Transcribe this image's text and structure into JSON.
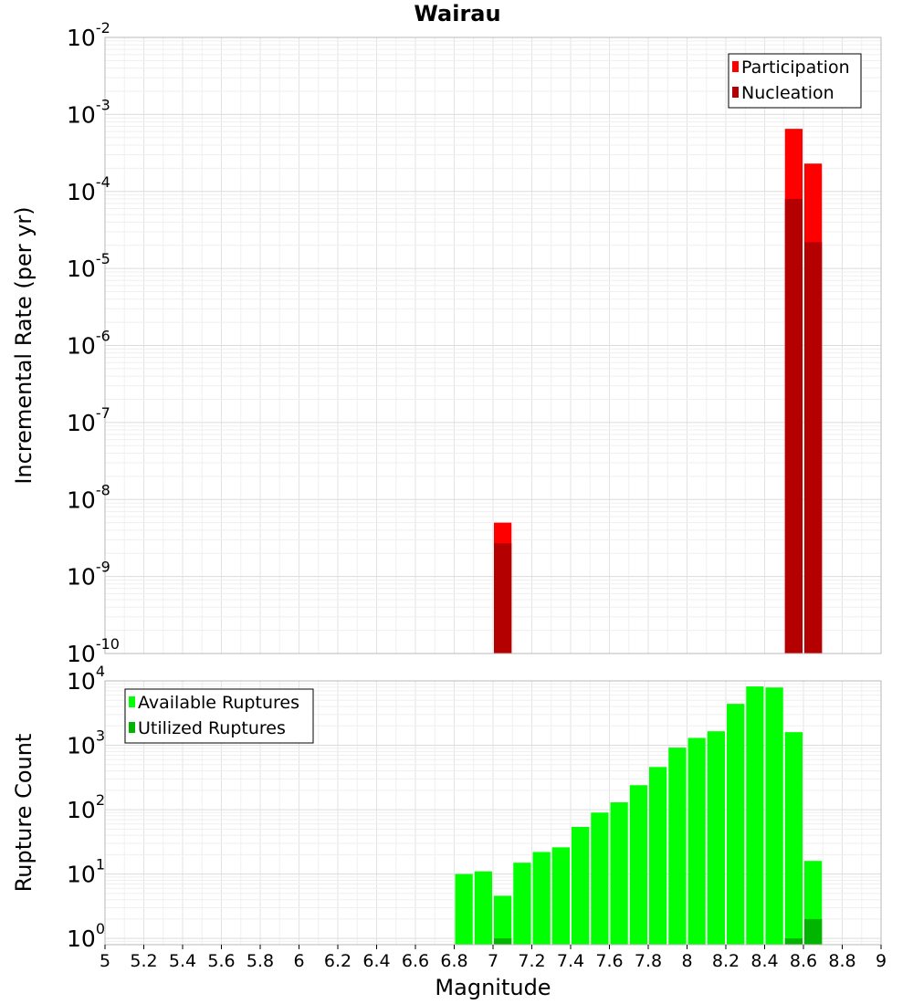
{
  "chart_data": [
    {
      "id": "rates",
      "type": "bar",
      "title": "Wairau",
      "xlabel": "",
      "ylabel": "Incremental Rate (per yr)",
      "yscale": "log",
      "ylim": [
        1e-10,
        0.01
      ],
      "xlim": [
        5,
        9
      ],
      "bar_width": 0.1,
      "grid": true,
      "legend_position": "top-right",
      "y_tick_labels": [
        {
          "base": "10",
          "exp": "-10",
          "value": 1e-10
        },
        {
          "base": "10",
          "exp": "-9",
          "value": 1e-09
        },
        {
          "base": "10",
          "exp": "-8",
          "value": 1e-08
        },
        {
          "base": "10",
          "exp": "-7",
          "value": 1e-07
        },
        {
          "base": "10",
          "exp": "-6",
          "value": 1e-06
        },
        {
          "base": "10",
          "exp": "-5",
          "value": 1e-05
        },
        {
          "base": "10",
          "exp": "-4",
          "value": 0.0001
        },
        {
          "base": "10",
          "exp": "-3",
          "value": 0.001
        },
        {
          "base": "10",
          "exp": "-2",
          "value": 0.01
        }
      ],
      "series": [
        {
          "name": "Participation",
          "color": "#ff0000",
          "x": [
            7.05,
            8.55,
            8.65
          ],
          "values": [
            5e-09,
            0.00065,
            0.00023
          ]
        },
        {
          "name": "Nucleation",
          "color": "#b40000",
          "x": [
            7.05,
            8.55,
            8.65
          ],
          "values": [
            2.7e-09,
            8e-05,
            2.2e-05
          ]
        }
      ]
    },
    {
      "id": "counts",
      "type": "bar",
      "title": "",
      "xlabel": "Magnitude",
      "ylabel": "Rupture Count",
      "yscale": "log",
      "ylim": [
        0.8,
        10000
      ],
      "xlim": [
        5,
        9
      ],
      "bar_width": 0.1,
      "grid": true,
      "legend_position": "top-left",
      "x_tick_labels": [
        "5",
        "5.2",
        "5.4",
        "5.6",
        "5.8",
        "6",
        "6.2",
        "6.4",
        "6.6",
        "6.8",
        "7",
        "7.2",
        "7.4",
        "7.6",
        "7.8",
        "8",
        "8.2",
        "8.4",
        "8.6",
        "8.8",
        "9"
      ],
      "y_tick_labels": [
        {
          "base": "10",
          "exp": "0",
          "value": 1
        },
        {
          "base": "10",
          "exp": "1",
          "value": 10
        },
        {
          "base": "10",
          "exp": "2",
          "value": 100
        },
        {
          "base": "10",
          "exp": "3",
          "value": 1000
        },
        {
          "base": "10",
          "exp": "4",
          "value": 10000
        }
      ],
      "series": [
        {
          "name": "Available Ruptures",
          "color": "#00ff00",
          "x": [
            6.85,
            6.95,
            7.05,
            7.15,
            7.25,
            7.35,
            7.45,
            7.55,
            7.65,
            7.75,
            7.85,
            7.95,
            8.05,
            8.15,
            8.25,
            8.35,
            8.45,
            8.55,
            8.65
          ],
          "values": [
            10,
            11,
            4.6,
            15,
            22,
            26,
            54,
            90,
            130,
            240,
            460,
            920,
            1300,
            1650,
            4400,
            8200,
            7900,
            1600,
            16
          ]
        },
        {
          "name": "Utilized Ruptures",
          "color": "#00b400",
          "x": [
            7.05,
            8.55,
            8.65
          ],
          "values": [
            1,
            1,
            2
          ]
        }
      ]
    }
  ]
}
